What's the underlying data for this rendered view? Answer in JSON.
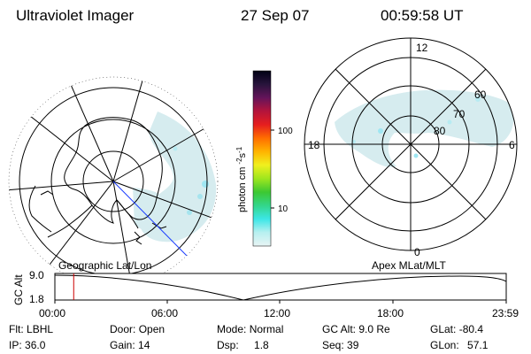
{
  "header": {
    "instrument": "Ultraviolet Imager",
    "date": "27 Sep 07",
    "time": "00:59:58 UT"
  },
  "colors": {
    "aurora_fill": "#cfeaf0",
    "aurora_bright": "#9fe6f2",
    "ocean_line": "#000000",
    "meridian_blue": "#1a3cff",
    "timeline_marker": "#cc0000"
  },
  "left_map": {
    "projection_label": "Geographic Lat/Lon"
  },
  "right_map": {
    "projection_label": "Apex MLat/MLT",
    "mlt_labels": [
      "12",
      "18",
      "6",
      "0"
    ],
    "lat_labels": [
      "60",
      "70",
      "80"
    ]
  },
  "colorbar": {
    "unit_label": "photon cm",
    "unit_sup1": "-2",
    "unit_s": "s",
    "unit_sup2": "-1",
    "ticks": [
      "100",
      "10"
    ],
    "stops": [
      "#e8f4f4",
      "#b8f0f0",
      "#3ce6e6",
      "#33d68a",
      "#3cc832",
      "#9ee61e",
      "#f0f01e",
      "#ffb400",
      "#ff6e00",
      "#e61e1e",
      "#b4143c",
      "#64145a",
      "#28143c",
      "#000014"
    ]
  },
  "timeline": {
    "y_label": "GC Alt",
    "y_ticks": [
      "9.0",
      "1.8"
    ],
    "x_ticks": [
      "00:00",
      "06:00",
      "12:00",
      "18:00",
      "23:59"
    ],
    "current_time_fraction": 0.0417
  },
  "status": {
    "filter_label": "Flt:",
    "filter_value": "LBHL",
    "ip_label": "IP:",
    "ip_value": "36.0",
    "door_label": "Door:",
    "door_value": "Open",
    "gain_label": "Gain:",
    "gain_value": "14",
    "mode_label": "Mode:",
    "mode_value": "Normal",
    "dsp_label": "Dsp:",
    "dsp_value": "1.8",
    "gcalt_label": "GC Alt:",
    "gcalt_value": "9.0 Re",
    "seq_label": "Seq:",
    "seq_value": "39",
    "glat_label": "GLat:",
    "glat_value": "-80.4",
    "glon_label": "GLon:",
    "glon_value": "57.1"
  }
}
